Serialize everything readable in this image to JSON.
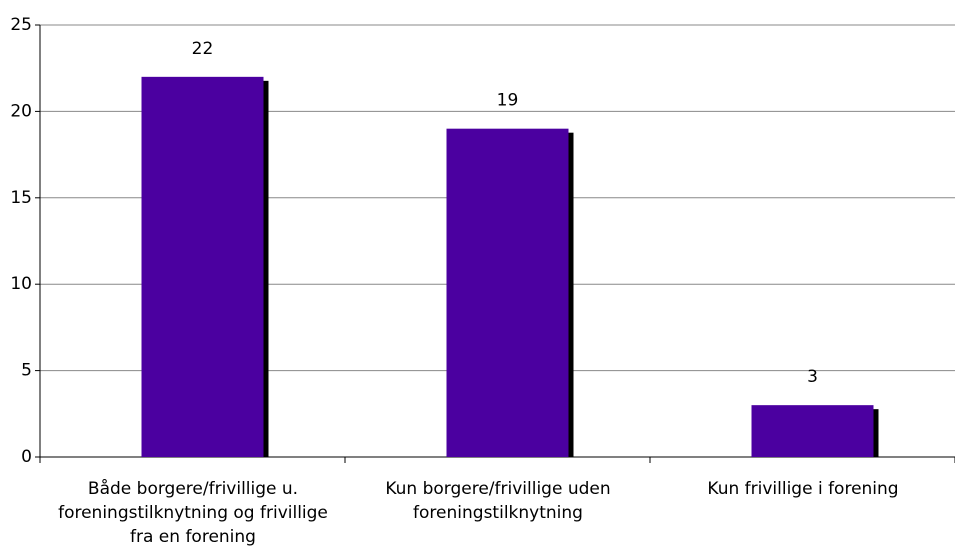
{
  "chart_data": {
    "type": "bar",
    "categories": [
      "Både borgere/frivillige u. foreningstilknytning og frivillige fra en forening",
      "Kun borgere/frivillige uden foreningstilknytning",
      "Kun frivillige i forening"
    ],
    "values": [
      22,
      19,
      3
    ],
    "color": "#4b00a0",
    "ylim": [
      0,
      25
    ],
    "yticks": [
      0,
      5,
      10,
      15,
      20,
      25
    ],
    "grid": true
  }
}
